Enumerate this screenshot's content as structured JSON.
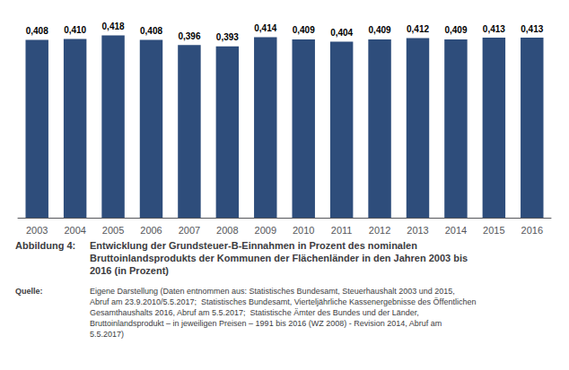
{
  "chart_data": {
    "type": "bar",
    "title": "Abbildung 4:",
    "subtitle": "Entwicklung der Grundsteuer-B-Einnahmen in Prozent des nominalen\nBruttoinlandsprodukts der Kommunen der Flächenländer in den Jahren 2003 bis\n2016 (in Prozent)",
    "annotations": [
      "Quelle:",
      "Eigene Darstellung (Daten entnommen aus: Statistisches Bundesamt, Steuerhaushalt 2003 und 2015,\nAbruf am 23.9.2010/5.5.2017;  Statistisches Bundesamt, Vierteljährliche Kassenergebnisse des Öffentlichen\nGesamthaushalts 2016, Abruf am 5.5.2017;  Statistische Ämter des Bundes und der Länder,\nBruttoinlandsprodukt – in jeweiligen Preisen – 1991 bis 2016 (WZ 2008) - Revision 2014, Abruf am\n5.5.2017)"
    ],
    "categories": [
      "2003",
      "2004",
      "2005",
      "2006",
      "2007",
      "2008",
      "2009",
      "2010",
      "2011",
      "2012",
      "2013",
      "2014",
      "2015",
      "2016"
    ],
    "values": [
      0.408,
      0.41,
      0.418,
      0.408,
      0.396,
      0.393,
      0.414,
      0.409,
      0.404,
      0.409,
      0.412,
      0.409,
      0.413,
      0.413
    ],
    "value_labels": [
      "0,408",
      "0,410",
      "0,418",
      "0,408",
      "0,396",
      "0,393",
      "0,414",
      "0,409",
      "0,404",
      "0,409",
      "0,412",
      "0,409",
      "0,413",
      "0,413"
    ],
    "color": "#2E4D7B",
    "ylim": [
      0,
      0.45
    ],
    "data_labels": true,
    "tick_labels": "x",
    "grid": false
  }
}
